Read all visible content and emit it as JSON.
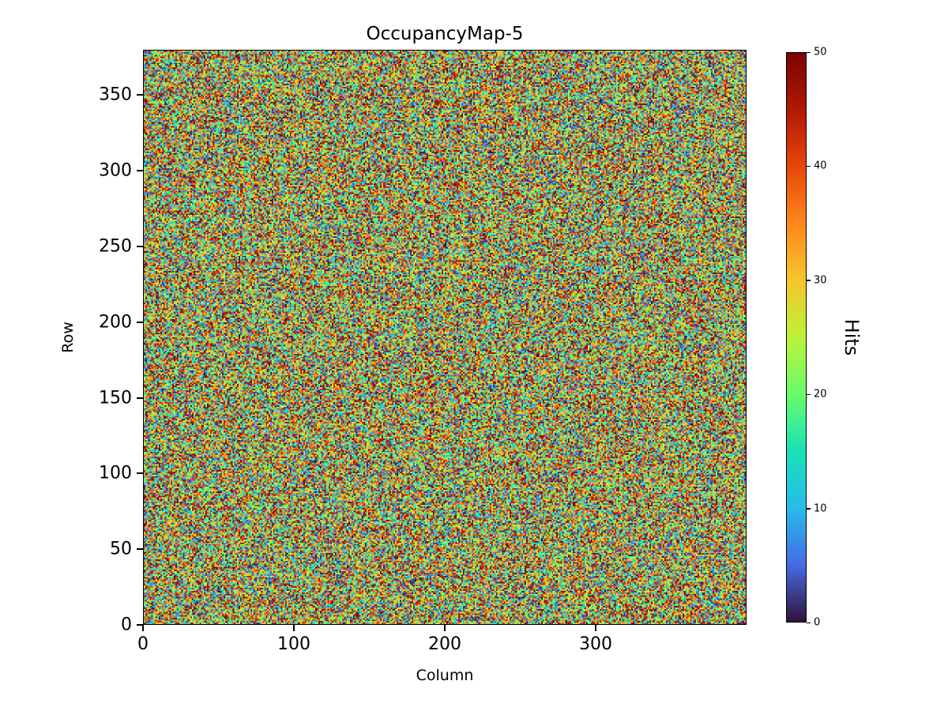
{
  "figure": {
    "background": "#ffffff",
    "text_color": "#000000"
  },
  "chart_data": {
    "type": "heatmap",
    "title": "OccupancyMap-5",
    "xlabel": "Column",
    "ylabel": "Row",
    "x_range": [
      0,
      400
    ],
    "y_range": [
      0,
      380
    ],
    "xticks": [
      0,
      100,
      200,
      300
    ],
    "yticks": [
      0,
      50,
      100,
      150,
      200,
      250,
      300,
      350
    ],
    "grid": false,
    "legend": "none",
    "colorbar": {
      "label": "Hits",
      "min": 0,
      "max": 50,
      "ticks": [
        0,
        10,
        20,
        30,
        40,
        50
      ],
      "position": "right"
    },
    "colormap": {
      "name": "turbo",
      "stops": [
        [
          0.0,
          [
            48,
            18,
            59
          ]
        ],
        [
          0.1,
          [
            70,
            107,
            227
          ]
        ],
        [
          0.2,
          [
            40,
            187,
            236
          ]
        ],
        [
          0.3,
          [
            24,
            226,
            183
          ]
        ],
        [
          0.4,
          [
            104,
            252,
            107
          ]
        ],
        [
          0.5,
          [
            189,
            242,
            57
          ]
        ],
        [
          0.6,
          [
            245,
            198,
            42
          ]
        ],
        [
          0.7,
          [
            252,
            136,
            27
          ]
        ],
        [
          0.8,
          [
            231,
            70,
            10
          ]
        ],
        [
          0.9,
          [
            178,
            24,
            2
          ]
        ],
        [
          1.0,
          [
            122,
            4,
            3
          ]
        ]
      ]
    },
    "data_summary": {
      "rows": 380,
      "cols": 400,
      "cell_value_min": 0,
      "cell_value_max": 50,
      "distribution": "uniform random per-pixel hit counts (dense speckle noise, no visible structure)",
      "seed": 5
    }
  }
}
